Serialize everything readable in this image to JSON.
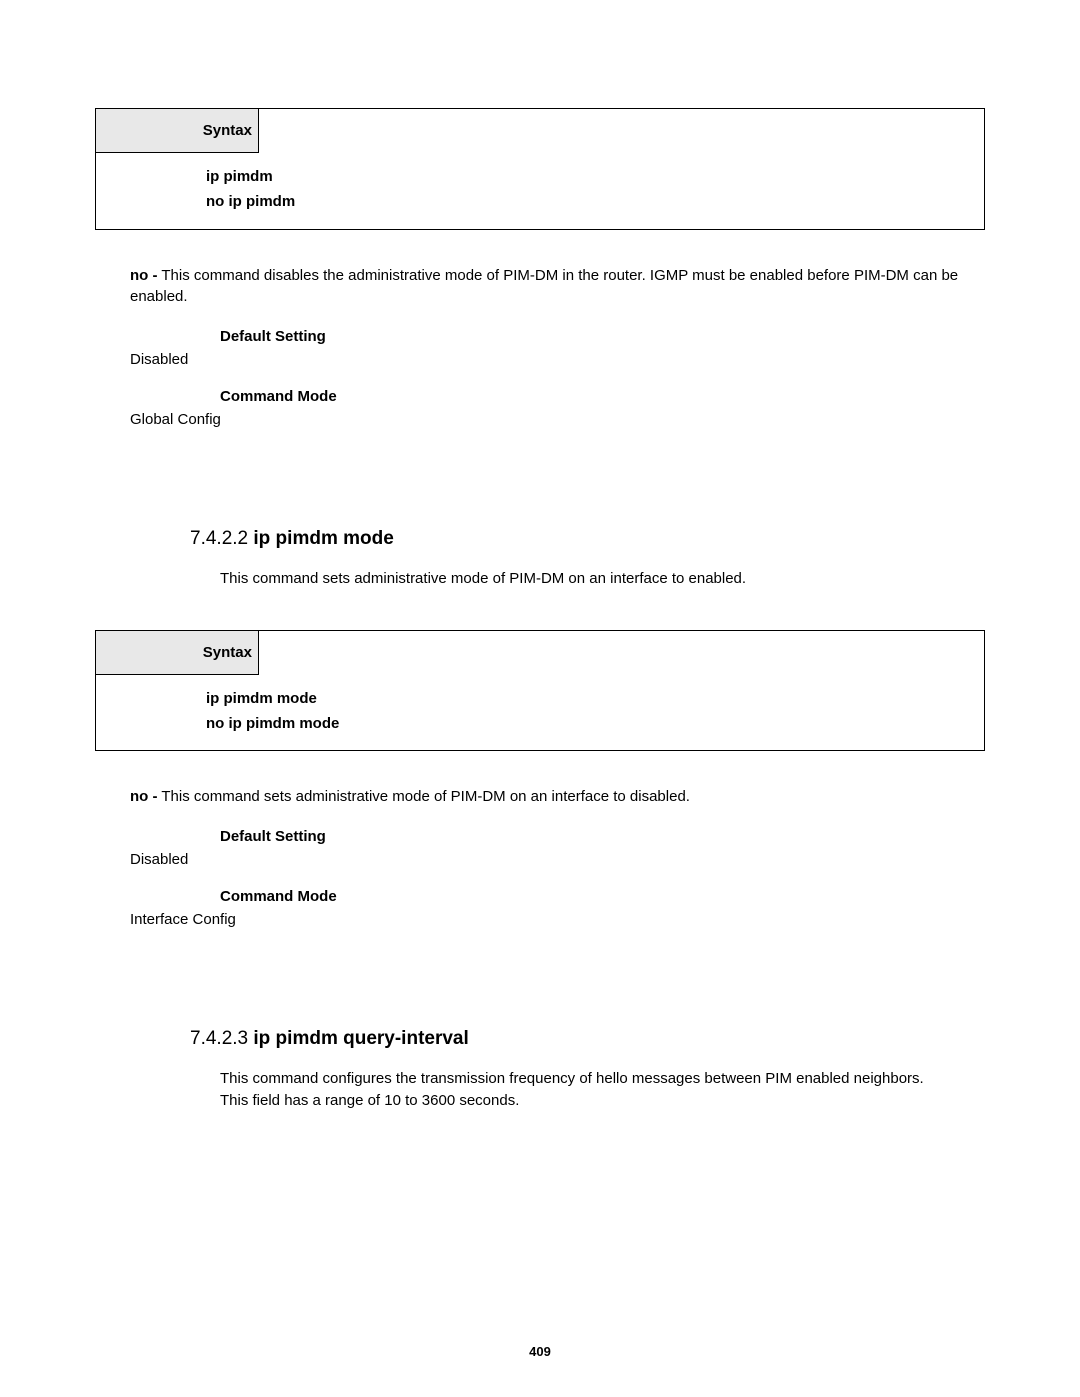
{
  "box1": {
    "syntax_label": "Syntax",
    "line1": "ip pimdm",
    "line2": "no ip pimdm"
  },
  "para1": {
    "lead": "no -",
    "text": " This command disables the administrative mode of PIM-DM in the router. IGMP must be enabled before PIM-DM can be enabled."
  },
  "sec1": {
    "default_label": "Default Setting",
    "default_value": "Disabled",
    "mode_label": "Command Mode",
    "mode_value": "Global Config"
  },
  "section2": {
    "num": "7.4.2.2 ",
    "name": "ip pimdm mode",
    "desc": "This command sets administrative mode of PIM-DM on an interface to enabled."
  },
  "box2": {
    "syntax_label": "Syntax",
    "line1": "ip pimdm mode",
    "line2": "no ip pimdm mode"
  },
  "para2": {
    "lead": "no -",
    "text": " This command sets administrative mode of PIM-DM on an interface to disabled."
  },
  "sec2": {
    "default_label": "Default Setting",
    "default_value": "Disabled",
    "mode_label": "Command Mode",
    "mode_value": "Interface Config"
  },
  "section3": {
    "num": "7.4.2.3 ",
    "name": "ip pimdm query-interval",
    "desc": "This command configures the transmission frequency of hello messages between PIM enabled neighbors. This field has a range of 10 to 3600 seconds."
  },
  "page_number": "409"
}
